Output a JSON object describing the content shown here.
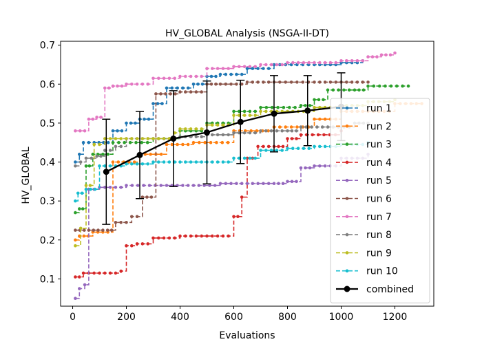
{
  "chart_data": {
    "type": "line",
    "title": "HV_GLOBAL Analysis (NSGA-II-DT)",
    "xlabel": "Evaluations",
    "ylabel": "HV_GLOBAL",
    "xlim": [
      -45,
      1345
    ],
    "ylim": [
      0.03,
      0.71
    ],
    "xticks": [
      0,
      200,
      400,
      600,
      800,
      1000,
      1200
    ],
    "yticks": [
      0.1,
      0.2,
      0.3,
      0.4,
      0.5,
      0.6,
      0.7
    ],
    "legend_position": "lower right",
    "series": [
      {
        "name": "run 1",
        "color": "#1f77b4",
        "x": [
          10,
          25,
          40,
          80,
          150,
          200,
          250,
          300,
          350,
          450,
          500,
          550,
          650,
          750,
          900,
          1000,
          1080
        ],
        "y": [
          0.4,
          0.42,
          0.45,
          0.45,
          0.48,
          0.5,
          0.51,
          0.55,
          0.59,
          0.6,
          0.62,
          0.625,
          0.64,
          0.65,
          0.65,
          0.655,
          0.66
        ]
      },
      {
        "name": "run 2",
        "color": "#ff7f0e",
        "x": [
          10,
          25,
          75,
          150,
          250,
          350,
          450,
          600,
          750,
          900,
          1000,
          1100,
          1200,
          1300
        ],
        "y": [
          0.2,
          0.21,
          0.22,
          0.4,
          0.42,
          0.445,
          0.45,
          0.48,
          0.49,
          0.51,
          0.53,
          0.53,
          0.55,
          0.55
        ]
      },
      {
        "name": "run 3",
        "color": "#2ca02c",
        "x": [
          10,
          25,
          50,
          75,
          150,
          300,
          400,
          500,
          600,
          700,
          850,
          900,
          950,
          1050,
          1100,
          1250
        ],
        "y": [
          0.27,
          0.28,
          0.39,
          0.42,
          0.45,
          0.46,
          0.48,
          0.5,
          0.53,
          0.54,
          0.545,
          0.56,
          0.585,
          0.585,
          0.595,
          0.595
        ]
      },
      {
        "name": "run 4",
        "color": "#d62728",
        "x": [
          10,
          40,
          100,
          180,
          200,
          240,
          300,
          400,
          500,
          580,
          600,
          630,
          650,
          690,
          750,
          800,
          850,
          1000
        ],
        "y": [
          0.105,
          0.115,
          0.115,
          0.12,
          0.185,
          0.19,
          0.205,
          0.21,
          0.21,
          0.21,
          0.26,
          0.31,
          0.41,
          0.44,
          0.44,
          0.46,
          0.47,
          0.48
        ]
      },
      {
        "name": "run 5",
        "color": "#9467bd",
        "x": [
          10,
          25,
          45,
          60,
          100,
          200,
          350,
          550,
          750,
          800,
          850,
          900,
          1000,
          1100
        ],
        "y": [
          0.05,
          0.075,
          0.085,
          0.33,
          0.335,
          0.34,
          0.34,
          0.345,
          0.345,
          0.35,
          0.385,
          0.39,
          0.41,
          0.42
        ]
      },
      {
        "name": "run 6",
        "color": "#8c564b",
        "x": [
          10,
          60,
          130,
          160,
          220,
          260,
          310,
          400,
          500,
          550,
          650,
          750,
          900,
          1100
        ],
        "y": [
          0.225,
          0.225,
          0.225,
          0.245,
          0.26,
          0.31,
          0.575,
          0.58,
          0.6,
          0.6,
          0.605,
          0.605,
          0.605,
          0.605
        ]
      },
      {
        "name": "run 7",
        "color": "#e377c2",
        "x": [
          10,
          45,
          60,
          90,
          120,
          150,
          200,
          300,
          400,
          500,
          600,
          700,
          800,
          900,
          1000,
          1100,
          1150,
          1200
        ],
        "y": [
          0.48,
          0.48,
          0.51,
          0.515,
          0.59,
          0.595,
          0.6,
          0.615,
          0.62,
          0.64,
          0.645,
          0.65,
          0.655,
          0.655,
          0.66,
          0.67,
          0.675,
          0.68
        ]
      },
      {
        "name": "run 8",
        "color": "#7f7f7f",
        "x": [
          10,
          30,
          50,
          90,
          120,
          160,
          200,
          300,
          400,
          500,
          600,
          700,
          800,
          850,
          950,
          1050,
          1100
        ],
        "y": [
          0.39,
          0.4,
          0.41,
          0.415,
          0.43,
          0.44,
          0.46,
          0.46,
          0.465,
          0.47,
          0.475,
          0.48,
          0.48,
          0.49,
          0.49,
          0.5,
          0.5
        ]
      },
      {
        "name": "run 9",
        "color": "#bcbd22",
        "x": [
          10,
          30,
          50,
          80,
          120,
          200,
          300,
          380,
          400,
          500,
          600,
          700,
          800,
          900,
          1000,
          1100,
          1200
        ],
        "y": [
          0.185,
          0.23,
          0.34,
          0.445,
          0.46,
          0.46,
          0.46,
          0.475,
          0.485,
          0.495,
          0.52,
          0.53,
          0.53,
          0.54,
          0.545,
          0.555,
          0.56
        ]
      },
      {
        "name": "run 10",
        "color": "#17becf",
        "x": [
          10,
          20,
          50,
          100,
          200,
          300,
          400,
          500,
          600,
          700,
          800,
          900,
          1000,
          1100
        ],
        "y": [
          0.3,
          0.32,
          0.33,
          0.39,
          0.395,
          0.4,
          0.4,
          0.4,
          0.41,
          0.43,
          0.435,
          0.44,
          0.445,
          0.45
        ]
      }
    ],
    "combined": {
      "name": "combined",
      "color": "#000000",
      "x": [
        125,
        250,
        375,
        500,
        625,
        750,
        875,
        1000
      ],
      "y": [
        0.375,
        0.418,
        0.46,
        0.476,
        0.503,
        0.524,
        0.532,
        0.542
      ],
      "yerr": [
        0.135,
        0.112,
        0.123,
        0.132,
        0.107,
        0.098,
        0.09,
        0.087
      ]
    }
  }
}
